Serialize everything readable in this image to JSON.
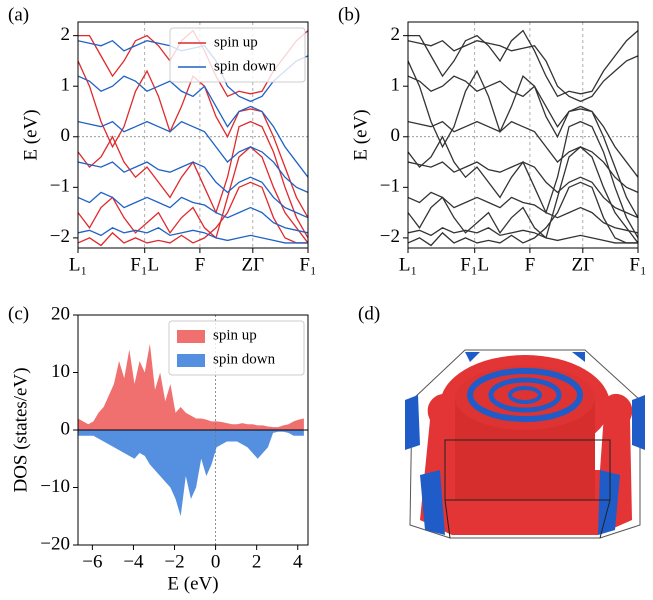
{
  "chart_data": [
    {
      "type": "bands",
      "label": "(a)",
      "y_label": "E (eV)",
      "xlim": [
        0,
        1
      ],
      "ylim": [
        -2.2,
        2.27
      ],
      "xticks": [
        {
          "value": 0,
          "label": "L₁"
        },
        {
          "value": 0.29,
          "label": "F₁L"
        },
        {
          "value": 0.53,
          "label": "F"
        },
        {
          "value": 0.76,
          "label": "ZΓ"
        },
        {
          "value": 1,
          "label": "F₁"
        }
      ],
      "yticks": [
        {
          "value": -2,
          "label": "−2"
        },
        {
          "value": -1,
          "label": "−1"
        },
        0,
        1,
        2
      ],
      "grid": true,
      "legend": "upper center",
      "x": [
        0,
        0.05,
        0.1,
        0.15,
        0.2,
        0.25,
        0.3,
        0.35,
        0.4,
        0.45,
        0.5,
        0.55,
        0.6,
        0.65,
        0.7,
        0.75,
        0.8,
        0.85,
        0.9,
        0.95,
        1
      ],
      "series": [
        {
          "name": "spin up",
          "color": "#e0292b",
          "bands": [
            [
              1.5,
              1.0,
              0.3,
              -0.2,
              0.2,
              0.9,
              1.3,
              0.8,
              0.1,
              0.6,
              1.2,
              1.0,
              0.4,
              0.0,
              0.5,
              0.55,
              0.5,
              0.0,
              -0.6,
              -1.2,
              -1.6
            ],
            [
              -0.3,
              -0.6,
              -0.4,
              0.0,
              -0.5,
              -0.8,
              -0.6,
              -0.9,
              -1.2,
              -0.8,
              -0.5,
              -1.0,
              -1.5,
              -0.8,
              0.2,
              0.3,
              0.2,
              -0.3,
              -1.0,
              -1.6,
              -2.0
            ],
            [
              2.0,
              2.0,
              1.6,
              1.2,
              1.5,
              1.9,
              2.0,
              1.8,
              1.5,
              1.9,
              2.1,
              1.7,
              1.2,
              0.8,
              0.9,
              0.85,
              0.9,
              1.3,
              1.6,
              1.9,
              2.1
            ],
            [
              -1.5,
              -1.8,
              -1.4,
              -1.2,
              -1.6,
              -1.9,
              -1.7,
              -1.5,
              -1.9,
              -1.6,
              -1.4,
              -1.8,
              -2.0,
              -1.2,
              -0.4,
              -0.2,
              -0.4,
              -1.0,
              -1.5,
              -1.8,
              -2.1
            ],
            [
              -2.1,
              -2.0,
              -2.15,
              -1.9,
              -2.1,
              -2.0,
              -2.1,
              -2.05,
              -2.1,
              -1.95,
              -2.1,
              -2.0,
              -1.8,
              -1.5,
              -1.0,
              -0.9,
              -1.0,
              -1.6,
              -2.0,
              -2.1,
              -2.1
            ]
          ]
        },
        {
          "name": "spin down",
          "color": "#1f62c4",
          "bands": [
            [
              1.9,
              1.85,
              1.8,
              1.9,
              1.7,
              1.8,
              1.9,
              1.85,
              1.8,
              1.7,
              1.75,
              1.8,
              1.5,
              1.0,
              0.8,
              0.7,
              0.8,
              1.1,
              1.3,
              1.5,
              1.6
            ],
            [
              1.2,
              1.1,
              0.9,
              1.0,
              1.2,
              1.1,
              0.9,
              1.0,
              1.1,
              0.9,
              0.8,
              1.0,
              0.6,
              0.2,
              0.5,
              0.6,
              0.5,
              0.2,
              -0.2,
              -0.5,
              -0.8
            ],
            [
              0.3,
              0.25,
              0.2,
              0.3,
              0.1,
              0.2,
              0.3,
              0.2,
              0.1,
              0.3,
              0.2,
              0.1,
              -0.2,
              -0.5,
              -0.3,
              -0.2,
              -0.3,
              -0.5,
              -0.8,
              -1.0,
              -1.1
            ],
            [
              -0.5,
              -0.55,
              -0.6,
              -0.5,
              -0.7,
              -0.6,
              -0.5,
              -0.65,
              -0.7,
              -0.6,
              -0.5,
              -0.6,
              -0.9,
              -1.1,
              -0.9,
              -0.8,
              -0.9,
              -1.2,
              -1.4,
              -1.5,
              -1.6
            ],
            [
              -1.2,
              -1.3,
              -1.1,
              -1.2,
              -1.4,
              -1.3,
              -1.2,
              -1.3,
              -1.4,
              -1.2,
              -1.3,
              -1.35,
              -1.5,
              -1.6,
              -1.5,
              -1.4,
              -1.5,
              -1.7,
              -1.8,
              -1.85,
              -1.9
            ],
            [
              -1.9,
              -1.85,
              -1.95,
              -1.8,
              -1.9,
              -1.85,
              -1.9,
              -1.8,
              -1.95,
              -1.9,
              -1.85,
              -1.9,
              -2.0,
              -2.05,
              -2.0,
              -1.95,
              -2.0,
              -2.05,
              -2.1,
              -2.1,
              -2.1
            ]
          ]
        }
      ]
    },
    {
      "type": "bands",
      "label": "(b)",
      "y_label": "E (eV)",
      "xlim": [
        0,
        1
      ],
      "ylim": [
        -2.2,
        2.27
      ],
      "xticks": [
        {
          "value": 0,
          "label": "L₁"
        },
        {
          "value": 0.29,
          "label": "F₁L"
        },
        {
          "value": 0.53,
          "label": "F"
        },
        {
          "value": 0.76,
          "label": "ZΓ"
        },
        {
          "value": 1,
          "label": "F₁"
        }
      ],
      "yticks": [
        {
          "value": -2,
          "label": "−2"
        },
        {
          "value": -1,
          "label": "−1"
        },
        0,
        1,
        2
      ],
      "grid": true,
      "x": [
        0,
        0.05,
        0.1,
        0.15,
        0.2,
        0.25,
        0.3,
        0.35,
        0.4,
        0.45,
        0.5,
        0.55,
        0.6,
        0.65,
        0.7,
        0.75,
        0.8,
        0.85,
        0.9,
        0.95,
        1
      ],
      "series": [
        {
          "color": "#333333",
          "bands": [
            [
              1.5,
              1.0,
              0.3,
              -0.2,
              0.2,
              0.9,
              1.3,
              0.8,
              0.1,
              0.6,
              1.2,
              1.0,
              0.4,
              0.0,
              0.5,
              0.55,
              0.5,
              0.0,
              -0.6,
              -1.2,
              -1.6
            ],
            [
              -0.3,
              -0.6,
              -0.4,
              0.0,
              -0.5,
              -0.8,
              -0.6,
              -0.9,
              -1.2,
              -0.8,
              -0.5,
              -1.0,
              -1.5,
              -0.8,
              0.2,
              0.3,
              0.2,
              -0.3,
              -1.0,
              -1.6,
              -2.0
            ],
            [
              2.0,
              2.0,
              1.6,
              1.2,
              1.5,
              1.9,
              2.0,
              1.8,
              1.5,
              1.9,
              2.1,
              1.7,
              1.2,
              0.8,
              0.9,
              0.85,
              0.9,
              1.3,
              1.6,
              1.9,
              2.1
            ],
            [
              -1.5,
              -1.8,
              -1.4,
              -1.2,
              -1.6,
              -1.9,
              -1.7,
              -1.5,
              -1.9,
              -1.6,
              -1.4,
              -1.8,
              -2.0,
              -1.2,
              -0.4,
              -0.2,
              -0.4,
              -1.0,
              -1.5,
              -1.8,
              -2.1
            ],
            [
              -2.1,
              -2.0,
              -2.15,
              -1.9,
              -2.1,
              -2.0,
              -2.1,
              -2.05,
              -2.1,
              -1.95,
              -2.1,
              -2.0,
              -1.8,
              -1.5,
              -1.0,
              -0.9,
              -1.0,
              -1.6,
              -2.0,
              -2.1,
              -2.1
            ],
            [
              1.9,
              1.85,
              1.8,
              1.9,
              1.7,
              1.8,
              1.9,
              1.85,
              1.8,
              1.7,
              1.75,
              1.8,
              1.5,
              1.0,
              0.8,
              0.7,
              0.8,
              1.1,
              1.3,
              1.5,
              1.6
            ],
            [
              1.2,
              1.1,
              0.9,
              1.0,
              1.2,
              1.1,
              0.9,
              1.0,
              1.1,
              0.9,
              0.8,
              1.0,
              0.6,
              0.2,
              0.5,
              0.6,
              0.5,
              0.2,
              -0.2,
              -0.5,
              -0.8
            ],
            [
              0.3,
              0.25,
              0.2,
              0.3,
              0.1,
              0.2,
              0.3,
              0.2,
              0.1,
              0.3,
              0.2,
              0.1,
              -0.2,
              -0.5,
              -0.3,
              -0.2,
              -0.3,
              -0.5,
              -0.8,
              -1.0,
              -1.1
            ],
            [
              -0.5,
              -0.55,
              -0.6,
              -0.5,
              -0.7,
              -0.6,
              -0.5,
              -0.65,
              -0.7,
              -0.6,
              -0.5,
              -0.6,
              -0.9,
              -1.1,
              -0.9,
              -0.8,
              -0.9,
              -1.2,
              -1.4,
              -1.5,
              -1.6
            ],
            [
              -1.2,
              -1.3,
              -1.1,
              -1.2,
              -1.4,
              -1.3,
              -1.2,
              -1.3,
              -1.4,
              -1.2,
              -1.3,
              -1.35,
              -1.5,
              -1.6,
              -1.5,
              -1.4,
              -1.5,
              -1.7,
              -1.8,
              -1.85,
              -1.9
            ],
            [
              -1.9,
              -1.85,
              -1.95,
              -1.8,
              -1.9,
              -1.85,
              -1.9,
              -1.8,
              -1.95,
              -1.9,
              -1.85,
              -1.9,
              -2.0,
              -2.05,
              -2.0,
              -1.95,
              -2.0,
              -2.05,
              -2.1,
              -2.1,
              -2.1
            ]
          ]
        }
      ]
    },
    {
      "type": "area",
      "label": "(c)",
      "x_label": "E (eV)",
      "y_label": "DOS (states/eV)",
      "xlim": [
        -6.7,
        4.5
      ],
      "ylim": [
        -20,
        20
      ],
      "xticks": [
        {
          "value": -6,
          "label": "−6"
        },
        {
          "value": -4,
          "label": "−4"
        },
        {
          "value": -2,
          "label": "−2"
        },
        0,
        2,
        4
      ],
      "yticks": [
        {
          "value": -20,
          "label": "−20"
        },
        {
          "value": -10,
          "label": "−10"
        },
        0,
        10,
        20
      ],
      "legend": "upper right",
      "x": [
        -6.7,
        -6.45,
        -6.2,
        -5.95,
        -5.7,
        -5.45,
        -5.2,
        -4.95,
        -4.7,
        -4.45,
        -4.2,
        -3.95,
        -3.7,
        -3.45,
        -3.2,
        -2.95,
        -2.7,
        -2.45,
        -2.2,
        -1.95,
        -1.7,
        -1.45,
        -1.2,
        -0.95,
        -0.7,
        -0.45,
        -0.2,
        0.05,
        0.3,
        0.55,
        0.8,
        1.05,
        1.3,
        1.55,
        1.8,
        2.05,
        2.3,
        2.55,
        2.8,
        3.05,
        3.3,
        3.55,
        3.8,
        4.05,
        4.3
      ],
      "series": [
        {
          "name": "spin up",
          "color": "#f07070",
          "values": [
            2,
            1.5,
            1,
            1.5,
            3,
            4,
            6,
            8,
            12,
            9,
            14,
            8,
            12,
            10,
            15,
            7,
            10,
            5,
            8,
            3,
            4,
            3,
            2.5,
            2,
            2,
            1.8,
            1.5,
            1.5,
            1.4,
            1.2,
            1,
            1,
            1.2,
            1,
            1,
            0.8,
            0.8,
            0.6,
            0.5,
            0.5,
            0.8,
            1,
            1.5,
            1.8,
            2
          ]
        },
        {
          "name": "spin down",
          "color": "#5590e0",
          "values": [
            -1,
            -1,
            -1,
            -1,
            -1.5,
            -2,
            -2.5,
            -3,
            -3.5,
            -4,
            -4.5,
            -5,
            -4,
            -4.5,
            -6,
            -7,
            -8,
            -9,
            -10,
            -12,
            -15,
            -8,
            -12,
            -10,
            -5,
            -8,
            -6,
            -3,
            -2.5,
            -2,
            -2,
            -2,
            -2.5,
            -3,
            -4,
            -5,
            -4,
            -3,
            -0.5,
            -0.3,
            -0.3,
            -0.5,
            -1,
            -1,
            -1
          ]
        }
      ]
    },
    {
      "type": "fermi-surface",
      "label": "(d)"
    }
  ]
}
